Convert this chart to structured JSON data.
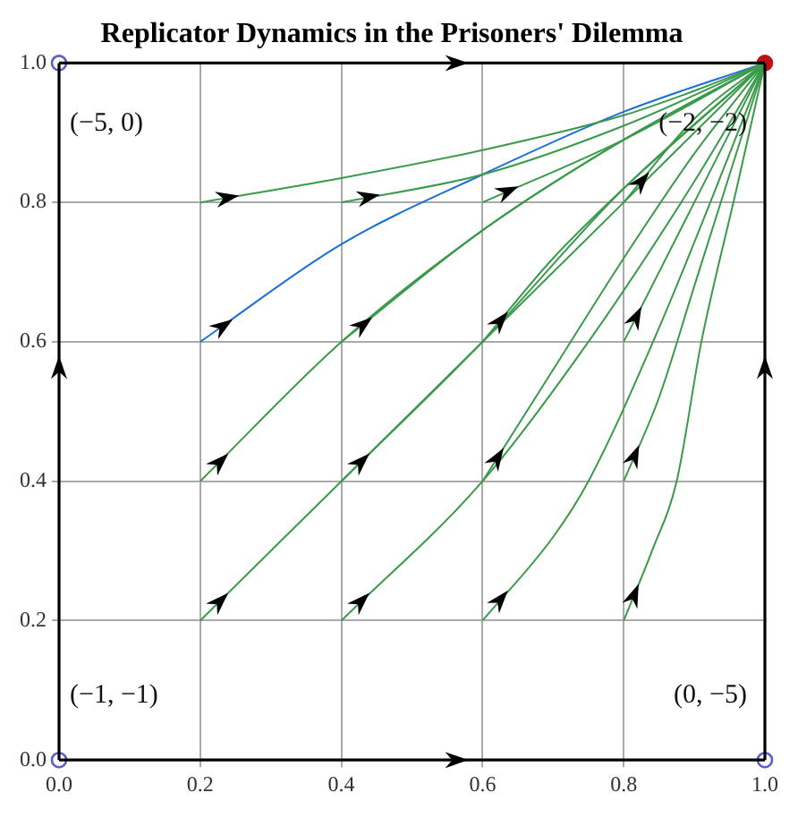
{
  "chart_data": {
    "type": "line",
    "title": "Replicator Dynamics in the Prisoners' Dilemma",
    "xlim": [
      0,
      1
    ],
    "ylim": [
      0,
      1
    ],
    "xticks": [
      {
        "value": 0,
        "label": "0.0"
      },
      0.2,
      0.4,
      0.6,
      0.8,
      {
        "value": 1,
        "label": "1.0"
      }
    ],
    "yticks": [
      {
        "value": 0,
        "label": "0.0"
      },
      0.2,
      0.4,
      0.6,
      0.8,
      {
        "value": 1,
        "label": "1.0"
      }
    ],
    "grid": true,
    "legend": false,
    "marker": "none",
    "line_style": "solid",
    "annotations": [
      "(−5, 0)",
      "(−2, −2)",
      "(−1, −1)",
      "(0, −5)"
    ],
    "series": [
      {
        "color": "#000000",
        "x": [
          0,
          1
        ],
        "values": [
          0,
          0
        ]
      },
      {
        "color": "#000000",
        "x": [
          0,
          1
        ],
        "values": [
          1,
          1
        ]
      },
      {
        "color": "#000000",
        "x": [
          0,
          0
        ],
        "values": [
          0,
          1
        ]
      },
      {
        "color": "#000000",
        "x": [
          1,
          1
        ],
        "values": [
          0,
          1
        ]
      },
      {
        "color": "#3a9a4a",
        "x": [
          0.2,
          0.4,
          0.6,
          0.8,
          0.9,
          1
        ],
        "values": [
          0.8,
          0.835,
          0.875,
          0.925,
          0.96,
          1
        ]
      },
      {
        "color": "#3a9a4a",
        "x": [
          0.4,
          0.6,
          0.8,
          1
        ],
        "values": [
          0.8,
          0.84,
          0.91,
          1
        ]
      },
      {
        "color": "#3a9a4a",
        "x": [
          0.6,
          0.8,
          1
        ],
        "values": [
          0.8,
          0.89,
          1
        ]
      },
      {
        "color": "#3a9a4a",
        "x": [
          0.8,
          0.9,
          1
        ],
        "values": [
          0.8,
          0.92,
          1
        ]
      },
      {
        "color": "#1a6fd6",
        "x": [
          0.2,
          0.4,
          0.6,
          0.8,
          1
        ],
        "values": [
          0.6,
          0.74,
          0.84,
          0.93,
          1
        ]
      },
      {
        "color": "#3a9a4a",
        "x": [
          0.4,
          0.6,
          0.8,
          1
        ],
        "values": [
          0.6,
          0.76,
          0.89,
          1
        ]
      },
      {
        "color": "#3a9a4a",
        "x": [
          0.6,
          0.7,
          0.8,
          1
        ],
        "values": [
          0.6,
          0.72,
          0.82,
          1
        ]
      },
      {
        "color": "#3a9a4a",
        "x": [
          0.8,
          0.9,
          1
        ],
        "values": [
          0.6,
          0.8,
          1
        ]
      },
      {
        "color": "#3a9a4a",
        "x": [
          0.2,
          0.4,
          0.6,
          0.8,
          1
        ],
        "values": [
          0.4,
          0.6,
          0.76,
          0.89,
          1
        ]
      },
      {
        "color": "#3a9a4a",
        "x": [
          0.4,
          0.6,
          0.8,
          1
        ],
        "values": [
          0.4,
          0.6,
          0.82,
          1
        ]
      },
      {
        "color": "#3a9a4a",
        "x": [
          0.6,
          0.7,
          0.8,
          0.9,
          1
        ],
        "values": [
          0.4,
          0.56,
          0.72,
          0.87,
          1
        ]
      },
      {
        "color": "#3a9a4a",
        "x": [
          0.8,
          0.85,
          0.9,
          0.95,
          1
        ],
        "values": [
          0.4,
          0.52,
          0.68,
          0.84,
          1
        ]
      },
      {
        "color": "#3a9a4a",
        "x": [
          0.2,
          0.4,
          0.6,
          0.8,
          1
        ],
        "values": [
          0.2,
          0.4,
          0.6,
          0.8,
          1
        ]
      },
      {
        "color": "#3a9a4a",
        "x": [
          0.4,
          0.6,
          0.75,
          0.9,
          1
        ],
        "values": [
          0.2,
          0.4,
          0.6,
          0.83,
          1
        ]
      },
      {
        "color": "#3a9a4a",
        "x": [
          0.6,
          0.7,
          0.75,
          0.85,
          0.95,
          1
        ],
        "values": [
          0.2,
          0.32,
          0.4,
          0.62,
          0.87,
          1
        ]
      },
      {
        "color": "#3a9a4a",
        "x": [
          0.8,
          0.84,
          0.875,
          0.91,
          0.96,
          1
        ],
        "values": [
          0.2,
          0.3,
          0.4,
          0.6,
          0.82,
          1
        ]
      },
      {
        "type": "scatter",
        "marker": "circle",
        "color": "#5a5fc8",
        "x": [
          0,
          0,
          1
        ],
        "values": [
          0,
          1,
          0
        ]
      },
      {
        "type": "scatter",
        "marker": "circle",
        "color": "#c0101a",
        "x": [
          1
        ],
        "values": [
          1
        ]
      }
    ]
  }
}
